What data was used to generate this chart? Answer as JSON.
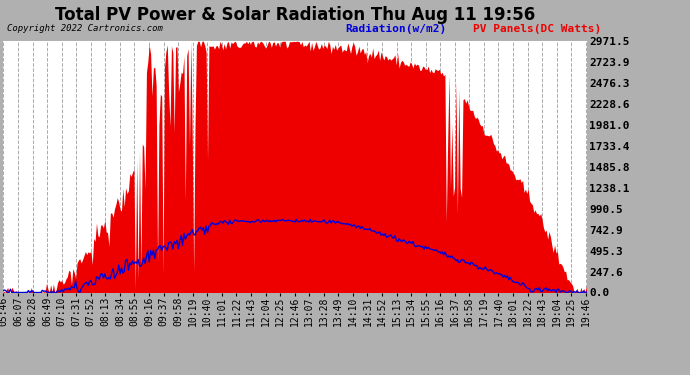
{
  "title": "Total PV Power & Solar Radiation Thu Aug 11 19:56",
  "copyright_text": "Copyright 2022 Cartronics.com",
  "legend_radiation": "Radiation(w/m2)",
  "legend_panels": "PV Panels(DC Watts)",
  "yticks": [
    0.0,
    247.6,
    495.3,
    742.9,
    990.5,
    1238.1,
    1485.8,
    1733.4,
    1981.0,
    2228.6,
    2476.3,
    2723.9,
    2971.5
  ],
  "ymax": 2971.5,
  "ymin": 0.0,
  "bg_color": "#b0b0b0",
  "plot_bg_color": "#ffffff",
  "fill_color": "#ee0000",
  "line_color_radiation": "#0000dd",
  "grid_color": "#aaaaaa",
  "title_color": "#000000",
  "copyright_color": "#000000",
  "legend_radiation_color": "#0000dd",
  "legend_panels_color": "#ee0000",
  "title_fontsize": 12,
  "tick_fontsize": 7,
  "ytick_fontsize": 8
}
